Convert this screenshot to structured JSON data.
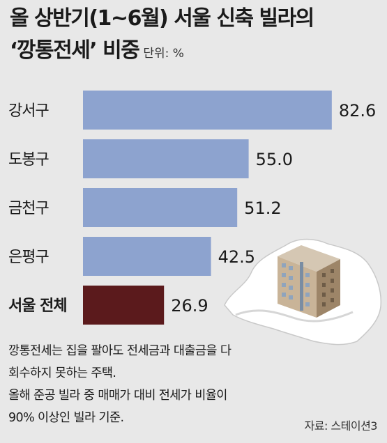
{
  "header": {
    "title_line1": "올 상반기(1~6월) 서울 신축 빌라의",
    "title_line2": "‘깡통전세’ 비중",
    "unit": "단위: %"
  },
  "notes": [
    "깡통전세는 집을 팔아도 전세금과 대출금을 다",
    "회수하지 못하는 주택.",
    "올해 준공 빌라 중 매매가 대비 전세가 비율이",
    "90% 이상인 빌라 기준."
  ],
  "source": "자료: 스테이션3",
  "chart_data": {
    "type": "bar",
    "orientation": "horizontal",
    "categories": [
      "강서구",
      "도봉구",
      "금천구",
      "은평구",
      "서울 전체"
    ],
    "values": [
      82.6,
      55.0,
      51.2,
      42.5,
      26.9
    ],
    "value_labels": [
      "82.6",
      "55.0",
      "51.2",
      "42.5",
      "26.9"
    ],
    "bar_colors": [
      "#8da3cf",
      "#8da3cf",
      "#8da3cf",
      "#8da3cf",
      "#5b1a1c"
    ],
    "highlight_category": "서울 전체",
    "xlim": [
      0,
      100
    ],
    "grid": false,
    "legend": "none"
  }
}
